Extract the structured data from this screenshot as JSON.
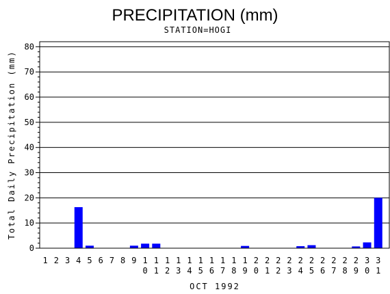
{
  "chart_data": {
    "type": "bar",
    "title": "PRECIPITATION (mm)",
    "subtitle": "STATION=HOGI",
    "xlabel": "OCT 1992",
    "ylabel": "Total Daily Precipitation (mm)",
    "ylim": [
      0,
      82
    ],
    "yticks": [
      0,
      10,
      20,
      30,
      40,
      50,
      60,
      70,
      80
    ],
    "grid": true,
    "bar_color": "#0000ff",
    "categories": [
      "1",
      "2",
      "3",
      "4",
      "5",
      "6",
      "7",
      "8",
      "9",
      "10",
      "11",
      "12",
      "13",
      "14",
      "15",
      "16",
      "17",
      "18",
      "19",
      "20",
      "21",
      "22",
      "23",
      "24",
      "25",
      "26",
      "27",
      "28",
      "29",
      "30",
      "31"
    ],
    "values": [
      0,
      0,
      0,
      16.3,
      1.0,
      0,
      0,
      0,
      1.0,
      1.8,
      1.8,
      0,
      0,
      0,
      0,
      0,
      0,
      0,
      0.9,
      0,
      0,
      0,
      0,
      0.8,
      1.2,
      0,
      0,
      0,
      0.7,
      2.3,
      20.0
    ]
  }
}
